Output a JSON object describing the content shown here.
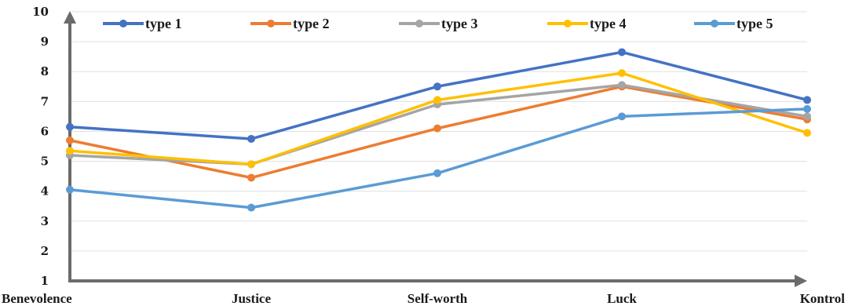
{
  "chart_data": {
    "type": "line",
    "title": "",
    "xlabel": "",
    "ylabel": "",
    "ylim": [
      1,
      10
    ],
    "yticks": [
      "1",
      "2",
      "3",
      "4",
      "5",
      "6",
      "7",
      "8",
      "9",
      "10"
    ],
    "grid": true,
    "legend_position": "top",
    "categories": [
      "Benevolence",
      "Justice",
      "Self-worth",
      "Luck",
      "Kontrol"
    ],
    "series": [
      {
        "name": "type 1",
        "color": "#4472c4",
        "values": [
          6.15,
          5.75,
          7.5,
          8.65,
          7.05
        ]
      },
      {
        "name": "type 2",
        "color": "#ed7d31",
        "values": [
          5.7,
          4.45,
          6.1,
          7.5,
          6.4
        ]
      },
      {
        "name": "type 3",
        "color": "#a5a5a5",
        "values": [
          5.2,
          4.9,
          6.9,
          7.55,
          6.5
        ]
      },
      {
        "name": "type 4",
        "color": "#ffc000",
        "values": [
          5.35,
          4.9,
          7.05,
          7.95,
          5.95
        ]
      },
      {
        "name": "type 5",
        "color": "#5b9bd5",
        "values": [
          4.05,
          3.45,
          4.6,
          6.5,
          6.75
        ]
      }
    ]
  }
}
